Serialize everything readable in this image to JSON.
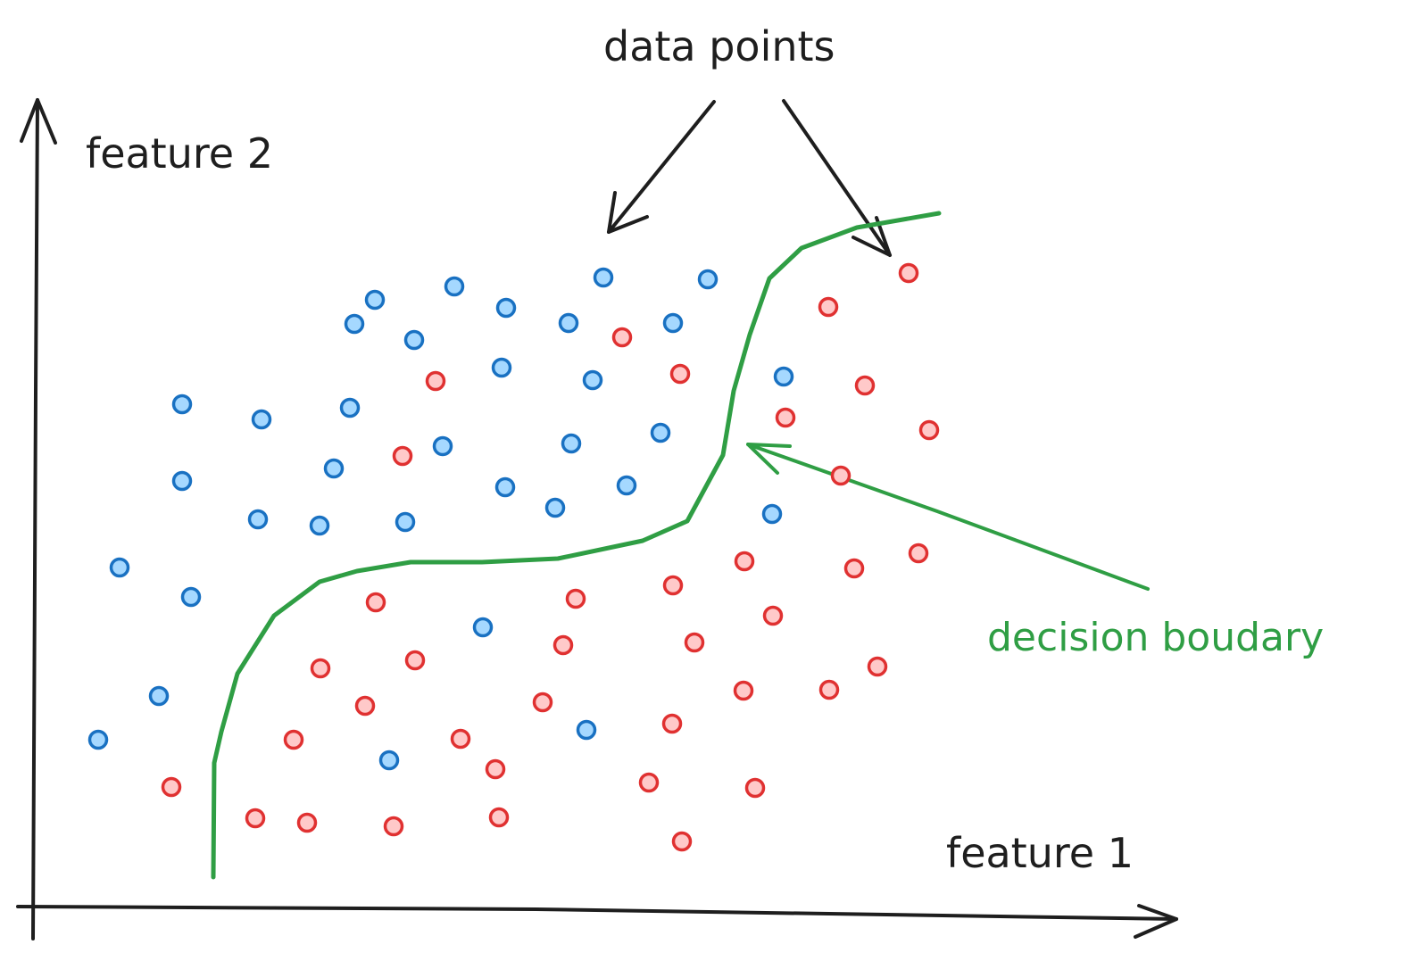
{
  "labels": {
    "y_axis": "feature 2",
    "x_axis": "feature 1",
    "data_points": "data points",
    "decision_boundary": "decision boudary"
  },
  "colors": {
    "ink": "#1e1e1e",
    "blue_stroke": "#1971c2",
    "blue_fill": "#a5d8ff",
    "red_stroke": "#e03131",
    "red_fill": "#ffc9c9",
    "boundary": "#2f9e44"
  },
  "points": {
    "blue": [
      [
        676,
        311
      ],
      [
        793,
        313
      ],
      [
        420,
        336
      ],
      [
        567,
        345
      ],
      [
        397,
        363
      ],
      [
        637,
        362
      ],
      [
        754,
        362
      ],
      [
        464,
        381
      ],
      [
        562,
        412
      ],
      [
        664,
        426
      ],
      [
        878,
        422
      ],
      [
        204,
        453
      ],
      [
        293,
        470
      ],
      [
        392,
        457
      ],
      [
        740,
        485
      ],
      [
        496,
        500
      ],
      [
        640,
        497
      ],
      [
        204,
        539
      ],
      [
        374,
        525
      ],
      [
        566,
        546
      ],
      [
        702,
        544
      ],
      [
        622,
        569
      ],
      [
        289,
        582
      ],
      [
        358,
        589
      ],
      [
        454,
        585
      ],
      [
        865,
        576
      ],
      [
        134,
        636
      ],
      [
        214,
        669
      ],
      [
        541,
        703
      ],
      [
        178,
        780
      ],
      [
        110,
        829
      ],
      [
        657,
        818
      ],
      [
        436,
        852
      ],
      [
        509,
        321
      ]
    ],
    "red": [
      [
        1018,
        306
      ],
      [
        928,
        344
      ],
      [
        697,
        378
      ],
      [
        488,
        427
      ],
      [
        762,
        419
      ],
      [
        969,
        432
      ],
      [
        880,
        468
      ],
      [
        1041,
        482
      ],
      [
        451,
        511
      ],
      [
        942,
        533
      ],
      [
        834,
        629
      ],
      [
        957,
        637
      ],
      [
        1029,
        620
      ],
      [
        754,
        656
      ],
      [
        421,
        675
      ],
      [
        645,
        671
      ],
      [
        866,
        690
      ],
      [
        631,
        723
      ],
      [
        778,
        720
      ],
      [
        465,
        740
      ],
      [
        359,
        749
      ],
      [
        983,
        747
      ],
      [
        833,
        774
      ],
      [
        929,
        773
      ],
      [
        409,
        791
      ],
      [
        608,
        787
      ],
      [
        329,
        829
      ],
      [
        516,
        828
      ],
      [
        753,
        811
      ],
      [
        555,
        862
      ],
      [
        192,
        882
      ],
      [
        727,
        877
      ],
      [
        846,
        883
      ],
      [
        286,
        917
      ],
      [
        344,
        922
      ],
      [
        441,
        926
      ],
      [
        559,
        916
      ],
      [
        764,
        943
      ]
    ]
  }
}
